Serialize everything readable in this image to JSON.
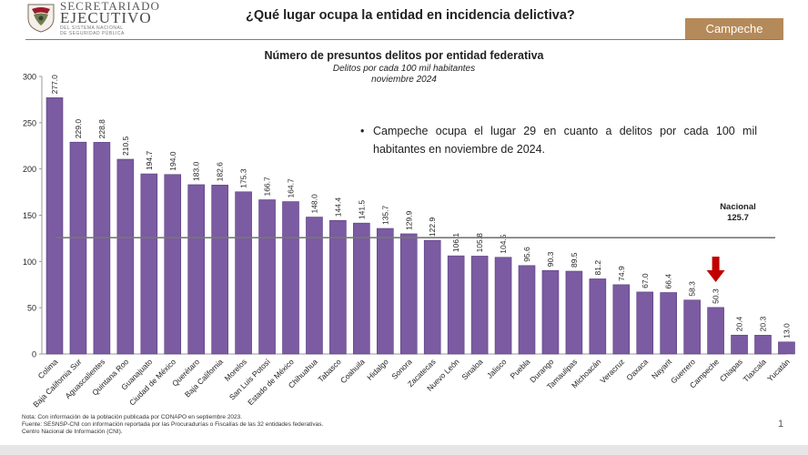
{
  "header": {
    "org_line1": "SECRETARIADO",
    "org_line2": "EJECUTIVO",
    "org_line3": "DEL SISTEMA NACIONAL",
    "org_line4": "DE SEGURIDAD PÚBLICA",
    "question": "¿Qué lugar ocupa la entidad en incidencia delictiva?",
    "state_button": "Campeche"
  },
  "colors": {
    "bar": "#7b5ba1",
    "bar_edge": "#5b3d80",
    "reference_line": "#777777",
    "marker": "#c00000",
    "state_button": "#b58a5a"
  },
  "chart_data": {
    "type": "bar",
    "title": "Número de presuntos delitos por entidad federativa",
    "subtitle": "Delitos por cada 100 mil habitantes",
    "period": "noviembre 2024",
    "categories": [
      "Colima",
      "Baja California Sur",
      "Aguascalientes",
      "Quintana Roo",
      "Guanajuato",
      "Ciudad de México",
      "Querétaro",
      "Baja California",
      "Morelos",
      "San Luis Potosí",
      "Estado de México",
      "Chihuahua",
      "Tabasco",
      "Coahuila",
      "Hidalgo",
      "Sonora",
      "Zacatecas",
      "Nuevo León",
      "Sinaloa",
      "Jalisco",
      "Puebla",
      "Durango",
      "Tamaulipas",
      "Michoacán",
      "Veracruz",
      "Oaxaca",
      "Nayarit",
      "Guerrero",
      "Campeche",
      "Chiapas",
      "Tlaxcala",
      "Yucatán"
    ],
    "values": [
      277.0,
      229.0,
      228.8,
      210.5,
      194.7,
      194.0,
      183.0,
      182.6,
      175.3,
      166.7,
      164.7,
      148.0,
      144.4,
      141.5,
      135.7,
      129.9,
      122.9,
      106.1,
      105.8,
      104.5,
      95.6,
      90.3,
      89.5,
      81.2,
      74.9,
      67.0,
      66.4,
      58.3,
      50.3,
      20.4,
      20.3,
      13.0
    ],
    "value_labels": [
      "277.0",
      "229.0",
      "228.8",
      "210.5",
      "194.7",
      "194.0",
      "183.0",
      "182.6",
      "175.3",
      "166.7",
      "164.7",
      "148.0",
      "144.4",
      "141.5",
      "135.7",
      "129.9",
      "122.9",
      "106.1",
      "105.8",
      "104.5",
      "95.6",
      "90.3",
      "89.5",
      "81.2",
      "74.9",
      "67.0",
      "66.4",
      "58.3",
      "50.3",
      "20.4",
      "20.3",
      "13.0"
    ],
    "ylim": [
      0,
      300
    ],
    "yticks": [
      "0",
      "50",
      "100",
      "150",
      "200",
      "250",
      "300"
    ],
    "highlight_category": "Campeche",
    "reference": {
      "label": "Nacional",
      "value": 125.7,
      "value_label": "125.7"
    },
    "grid": false,
    "legend": "none"
  },
  "annotation": {
    "bullet": "•",
    "text": "Campeche ocupa el lugar 29 en cuanto a delitos por cada 100 mil habitantes en noviembre de 2024."
  },
  "notes": [
    "Nota: Con información de la población publicada por CONAPO en septiembre 2023.",
    "Fuente: SESNSP-CNI con información reportada por las Procuradurías o Fiscalías de las 32 entidades federativas.",
    "Centro Nacional de Información (CNI)."
  ],
  "page_number": "1"
}
